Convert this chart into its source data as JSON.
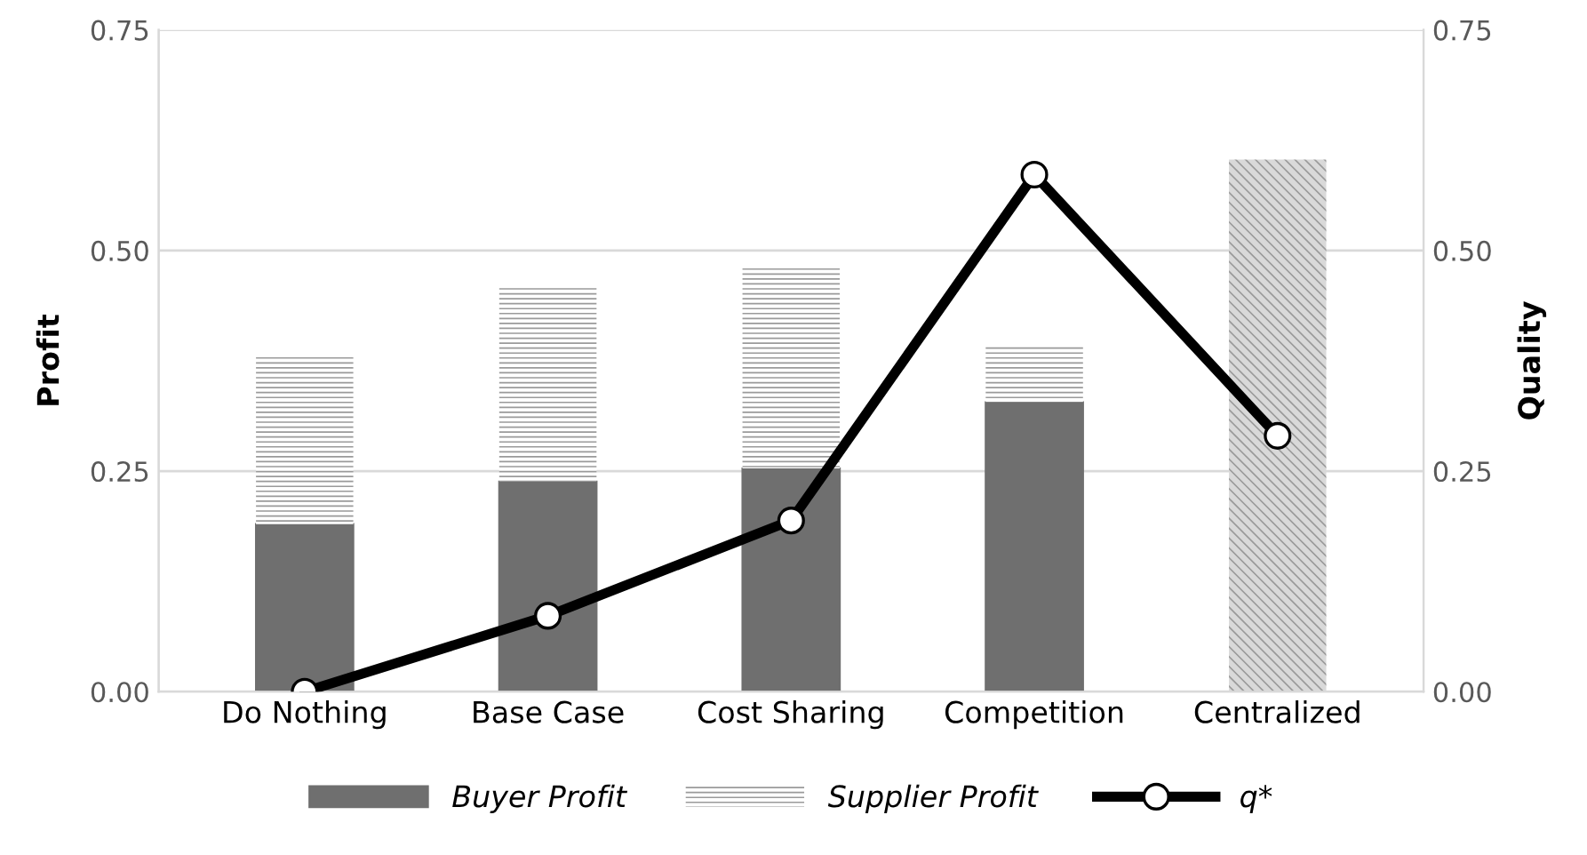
{
  "chart_data": {
    "type": "bar",
    "stacked": true,
    "ylabel": "Profit",
    "y2label": "Quality",
    "categories": [
      "Do Nothing",
      "Base Case",
      "Cost Sharing",
      "Competition",
      "Centralized"
    ],
    "series": [
      {
        "name": "Buyer Profit",
        "color": "#6f6f6f",
        "values": [
          0.19,
          0.238,
          0.253,
          0.328,
          null
        ]
      },
      {
        "name": "Supplier Profit",
        "color": "#ffffff",
        "values": [
          0.189,
          0.22,
          0.228,
          0.063,
          null
        ]
      },
      {
        "color": "#d9d9d9",
        "values": [
          null,
          null,
          null,
          null,
          0.603
        ]
      },
      {
        "name": "q*",
        "type": "line",
        "axis": "y2",
        "color": "#000000",
        "marker": "circle",
        "values": [
          0.0,
          0.086,
          0.194,
          0.586,
          0.29
        ]
      }
    ],
    "ylim": [
      0,
      0.75
    ],
    "yticks": [
      {
        "value": 0,
        "label": "0.00"
      },
      {
        "value": 0.25,
        "label": "0.25"
      },
      {
        "value": 0.5,
        "label": "0.50"
      },
      {
        "value": 0.75,
        "label": "0.75"
      }
    ],
    "y2lim": [
      0,
      0.75
    ],
    "y2ticks": [
      {
        "value": 0,
        "label": "0.00"
      },
      {
        "value": 0.25,
        "label": "0.25"
      },
      {
        "value": 0.5,
        "label": "0.50"
      },
      {
        "value": 0.75,
        "label": "0.75"
      }
    ],
    "grid": "y",
    "legend": "bottom"
  }
}
